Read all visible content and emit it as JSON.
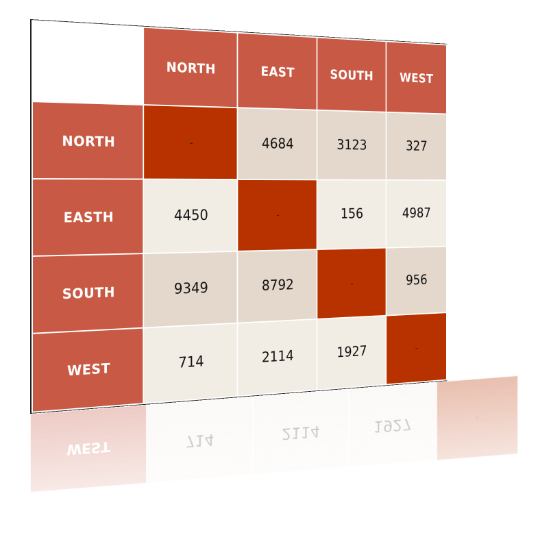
{
  "table": {
    "corner": "",
    "columns": [
      "NORTH",
      "EAST",
      "SOUTH",
      "WEST"
    ],
    "rows": [
      {
        "label": "NORTH",
        "cells": [
          "-",
          "4684",
          "3123",
          "327"
        ]
      },
      {
        "label": "EASTH",
        "cells": [
          "4450",
          "-",
          "156",
          "4987"
        ]
      },
      {
        "label": "SOUTH",
        "cells": [
          "9349",
          "8792",
          "-",
          "956"
        ]
      },
      {
        "label": "WEST",
        "cells": [
          "714",
          "2114",
          "1927",
          "-"
        ]
      }
    ]
  },
  "colors": {
    "header": "#c85a45",
    "diagonal": "#b83200",
    "cell_dark": "#e4d8cc",
    "cell_light": "#f1ece4"
  }
}
